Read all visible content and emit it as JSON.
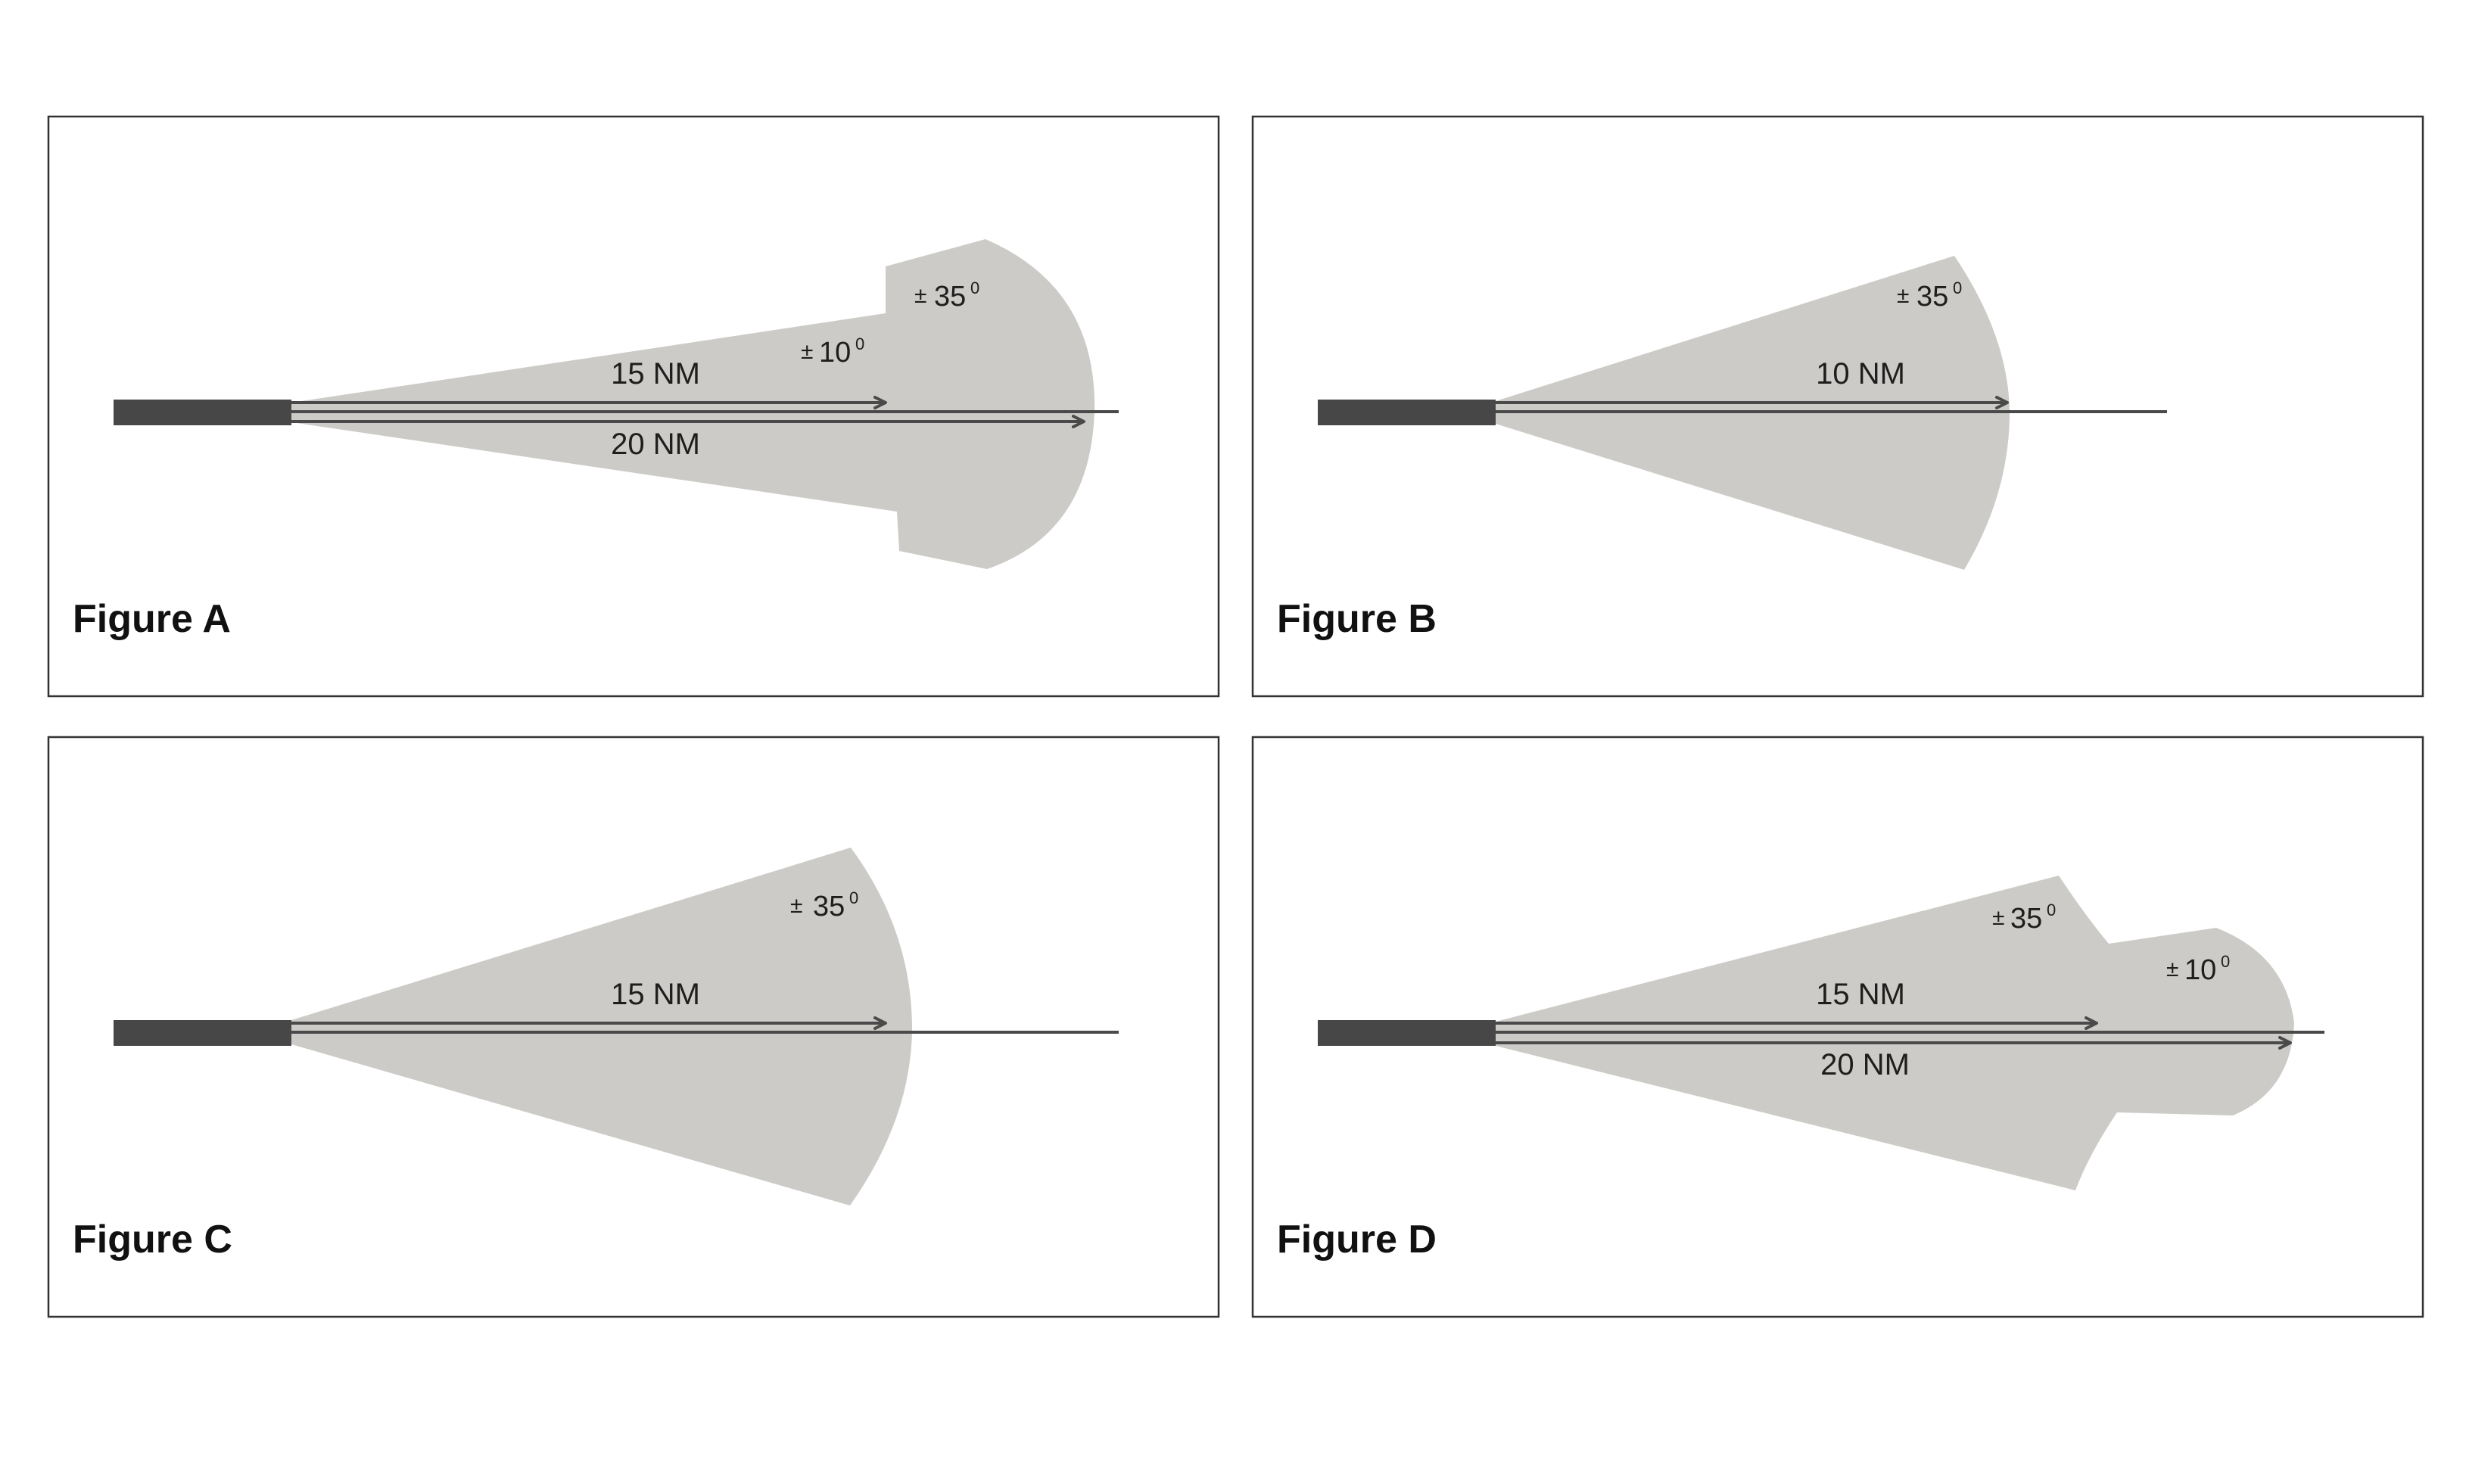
{
  "panels": [
    {
      "id": "a",
      "figure_label": "Figure A",
      "distance_labels": [
        "15 NM",
        "20 NM"
      ],
      "angle_labels": [
        {
          "value": "35",
          "sign": "±",
          "unit": "0"
        },
        {
          "value": "10",
          "sign": "±",
          "unit": "0"
        }
      ]
    },
    {
      "id": "b",
      "figure_label": "Figure B",
      "distance_labels": [
        "10 NM"
      ],
      "angle_labels": [
        {
          "value": "35",
          "sign": "±",
          "unit": "0"
        }
      ]
    },
    {
      "id": "c",
      "figure_label": "Figure C",
      "distance_labels": [
        "15 NM"
      ],
      "angle_labels": [
        {
          "value": "35",
          "sign": "±",
          "unit": "0"
        }
      ]
    },
    {
      "id": "d",
      "figure_label": "Figure D",
      "distance_labels": [
        "15 NM",
        "20 NM"
      ],
      "angle_labels": [
        {
          "value": "35",
          "sign": "±",
          "unit": "0"
        },
        {
          "value": "10",
          "sign": "±",
          "unit": "0"
        }
      ]
    }
  ],
  "colors": {
    "sector_fill": "#cccbc7",
    "runway": "#474747",
    "line": "#4a4a4a",
    "frame": "#333333"
  }
}
